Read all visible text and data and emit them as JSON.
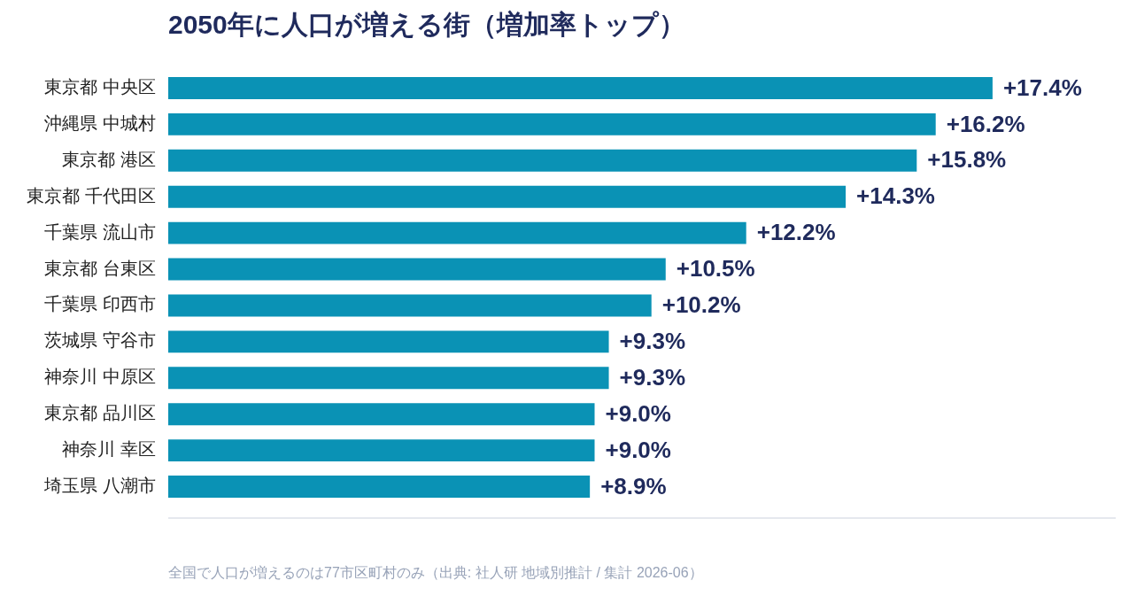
{
  "chart_data": {
    "type": "bar",
    "orientation": "horizontal",
    "title": "2050年に人口が増える街（増加率トップ）",
    "categories": [
      "東京都 中央区",
      "沖縄県 中城村",
      "東京都 港区",
      "東京都 千代田区",
      "千葉県 流山市",
      "東京都 台東区",
      "千葉県 印西市",
      "茨城県 守谷市",
      "神奈川 中原区",
      "東京都 品川区",
      "神奈川 幸区",
      "埼玉県 八潮市"
    ],
    "values": [
      17.4,
      16.2,
      15.8,
      14.3,
      12.2,
      10.5,
      10.2,
      9.3,
      9.3,
      9.0,
      9.0,
      8.9
    ],
    "color": "#0a92b5",
    "value_labels": [
      "+17.4%",
      "+16.2%",
      "+15.8%",
      "+14.3%",
      "+12.2%",
      "+10.5%",
      "+10.2%",
      "+9.3%",
      "+9.3%",
      "+9.0%",
      "+9.0%",
      "+8.9%"
    ],
    "xlim": [
      0,
      20
    ],
    "tick_labels": "y",
    "annotations": [
      "全国で人口が増えるのは77市区町村のみ（出典: 社人研 地域別推計 / 集計 2026-06）"
    ]
  }
}
